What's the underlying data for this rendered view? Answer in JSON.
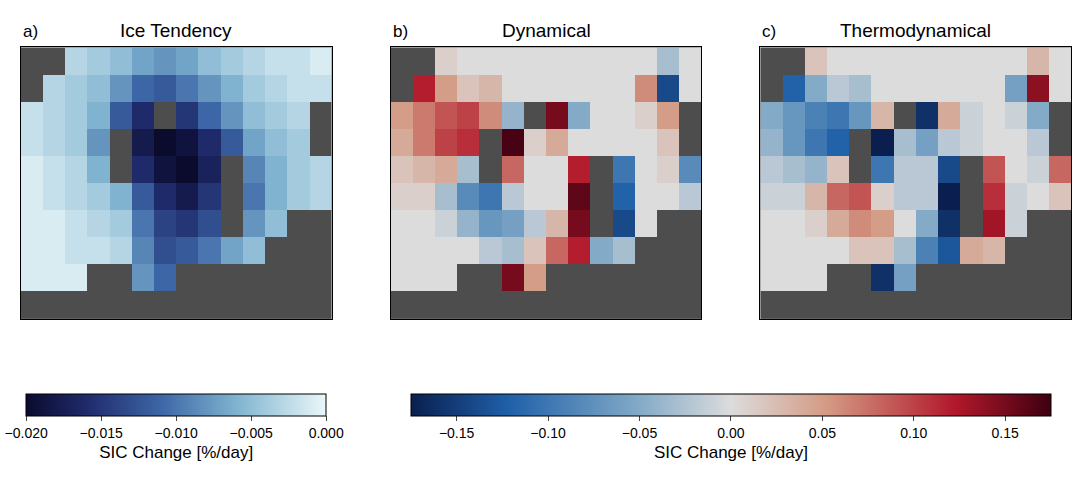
{
  "chart_data": [
    {
      "type": "heatmap",
      "letter": "a)",
      "title": "Ice Tendency",
      "tick_labels": false,
      "colorbar": {
        "range": [
          -0.02,
          0
        ],
        "label": "SIC Change [%/day]",
        "ticks": [
          {
            "value": -0.02,
            "label": "−0.020"
          },
          {
            "value": -0.015,
            "label": "−0.015"
          },
          {
            "value": -0.01,
            "label": "−0.010"
          },
          {
            "value": -0.005,
            "label": "−0.005"
          },
          {
            "value": 0,
            "label": "0.000"
          }
        ]
      },
      "cells": [
        [
          null,
          null,
          -0.003,
          -0.004,
          -0.005,
          -0.007,
          -0.008,
          -0.007,
          -0.005,
          -0.004,
          -0.003,
          -0.002,
          -0.002,
          -0.001
        ],
        [
          null,
          -0.003,
          -0.004,
          -0.005,
          -0.008,
          -0.011,
          -0.012,
          -0.01,
          -0.008,
          -0.006,
          -0.004,
          -0.003,
          -0.002,
          -0.002
        ],
        [
          -0.002,
          -0.003,
          -0.004,
          -0.006,
          -0.012,
          -0.016,
          null,
          -0.015,
          -0.011,
          -0.008,
          -0.005,
          -0.004,
          -0.003,
          null
        ],
        [
          -0.002,
          -0.003,
          -0.004,
          -0.008,
          null,
          -0.018,
          -0.02,
          -0.019,
          -0.016,
          -0.012,
          -0.007,
          -0.005,
          -0.004,
          null
        ],
        [
          -0.001,
          -0.002,
          -0.003,
          -0.006,
          null,
          -0.016,
          -0.019,
          -0.02,
          -0.017,
          null,
          -0.009,
          -0.006,
          -0.004,
          -0.003
        ],
        [
          -0.001,
          -0.002,
          -0.003,
          -0.004,
          -0.006,
          -0.012,
          -0.016,
          -0.018,
          -0.015,
          null,
          -0.01,
          -0.006,
          -0.004,
          -0.003
        ],
        [
          -0.001,
          -0.001,
          -0.002,
          -0.003,
          -0.004,
          -0.01,
          -0.014,
          -0.015,
          -0.013,
          null,
          -0.008,
          -0.005,
          null,
          null
        ],
        [
          -0.001,
          -0.001,
          -0.002,
          -0.002,
          -0.003,
          -0.009,
          -0.013,
          -0.012,
          -0.01,
          -0.007,
          -0.005,
          null,
          null,
          null
        ],
        [
          -0.001,
          -0.001,
          -0.001,
          null,
          null,
          -0.008,
          -0.011,
          null,
          null,
          null,
          null,
          null,
          null,
          null
        ],
        [
          null,
          null,
          null,
          null,
          null,
          null,
          null,
          null,
          null,
          null,
          null,
          null,
          null,
          null
        ]
      ]
    },
    {
      "type": "heatmap",
      "letter": "b)",
      "title": "Dynamical",
      "tick_labels": false,
      "colorbar": {
        "range": [
          -0.175,
          0.175
        ],
        "label": "SIC Change [%/day]",
        "ticks": [
          {
            "value": -0.15,
            "label": "−0.15"
          },
          {
            "value": -0.1,
            "label": "−0.10"
          },
          {
            "value": -0.05,
            "label": "−0.05"
          },
          {
            "value": 0,
            "label": "0.00"
          },
          {
            "value": 0.05,
            "label": "0.05"
          },
          {
            "value": 0.1,
            "label": "0.10"
          },
          {
            "value": 0.15,
            "label": "0.15"
          }
        ]
      },
      "cells": [
        [
          null,
          null,
          0.01,
          0.0,
          0.0,
          0.0,
          0.0,
          0.0,
          0.0,
          0.0,
          0.0,
          0.0,
          -0.03,
          0.0
        ],
        [
          null,
          0.12,
          0.05,
          0.02,
          0.03,
          0.0,
          0.0,
          0.0,
          0.0,
          0.0,
          0.0,
          0.06,
          -0.14,
          0.0
        ],
        [
          0.05,
          0.07,
          0.09,
          0.1,
          0.06,
          -0.04,
          null,
          0.15,
          -0.05,
          0.0,
          0.0,
          0.01,
          0.05,
          null
        ],
        [
          0.04,
          0.07,
          0.1,
          0.11,
          null,
          0.17,
          0.01,
          0.04,
          0.0,
          0.0,
          0.0,
          0.0,
          0.02,
          null
        ],
        [
          0.02,
          0.03,
          0.04,
          -0.03,
          null,
          0.08,
          0.0,
          0.0,
          0.12,
          null,
          -0.1,
          0.0,
          0.01,
          -0.08
        ],
        [
          0.01,
          0.01,
          -0.03,
          -0.08,
          -0.1,
          -0.02,
          0.0,
          0.0,
          0.16,
          null,
          -0.12,
          0.0,
          0.0,
          -0.02
        ],
        [
          0.0,
          0.0,
          -0.01,
          -0.04,
          -0.07,
          -0.06,
          -0.02,
          0.03,
          0.15,
          null,
          -0.14,
          0.0,
          null,
          null
        ],
        [
          0.0,
          0.0,
          0.0,
          0.0,
          -0.02,
          -0.03,
          0.02,
          0.08,
          0.12,
          -0.05,
          -0.03,
          null,
          null,
          null
        ],
        [
          0.0,
          0.0,
          0.0,
          null,
          null,
          0.15,
          0.05,
          null,
          null,
          null,
          null,
          null,
          null,
          null
        ],
        [
          null,
          null,
          null,
          null,
          null,
          null,
          null,
          null,
          null,
          null,
          null,
          null,
          null,
          null
        ]
      ]
    },
    {
      "type": "heatmap",
      "letter": "c)",
      "title": "Thermodynamical",
      "tick_labels": false,
      "colorbar_range": [
        -0.175,
        0.175
      ],
      "cells": [
        [
          null,
          null,
          0.02,
          0.0,
          0.0,
          0.0,
          0.0,
          0.0,
          0.0,
          0.0,
          0.0,
          0.0,
          0.03,
          0.0
        ],
        [
          null,
          -0.12,
          -0.05,
          -0.02,
          -0.03,
          0.0,
          0.0,
          0.0,
          0.0,
          0.0,
          0.0,
          -0.06,
          0.14,
          0.0
        ],
        [
          -0.05,
          -0.07,
          -0.09,
          -0.1,
          -0.07,
          0.03,
          null,
          -0.16,
          0.04,
          -0.01,
          0.0,
          -0.01,
          -0.05,
          null
        ],
        [
          -0.04,
          -0.07,
          -0.1,
          -0.12,
          null,
          -0.19,
          -0.03,
          -0.06,
          -0.02,
          -0.01,
          0.0,
          0.0,
          -0.02,
          null
        ],
        [
          -0.02,
          -0.03,
          -0.04,
          0.02,
          null,
          -0.1,
          -0.02,
          -0.02,
          -0.14,
          null,
          0.09,
          0.0,
          -0.01,
          0.08
        ],
        [
          -0.01,
          -0.01,
          0.03,
          0.08,
          0.09,
          0.01,
          -0.02,
          -0.02,
          -0.18,
          null,
          0.11,
          -0.01,
          0.0,
          0.02
        ],
        [
          0.0,
          0.0,
          0.01,
          0.04,
          0.06,
          0.05,
          0.0,
          -0.05,
          -0.16,
          null,
          0.13,
          -0.01,
          null,
          null
        ],
        [
          0.0,
          0.0,
          0.0,
          0.0,
          0.02,
          0.02,
          -0.03,
          -0.09,
          -0.13,
          0.04,
          0.03,
          null,
          null,
          null
        ],
        [
          0.0,
          0.0,
          0.0,
          null,
          null,
          -0.16,
          -0.06,
          null,
          null,
          null,
          null,
          null,
          null,
          null
        ],
        [
          null,
          null,
          null,
          null,
          null,
          null,
          null,
          null,
          null,
          null,
          null,
          null,
          null,
          null
        ]
      ]
    }
  ]
}
